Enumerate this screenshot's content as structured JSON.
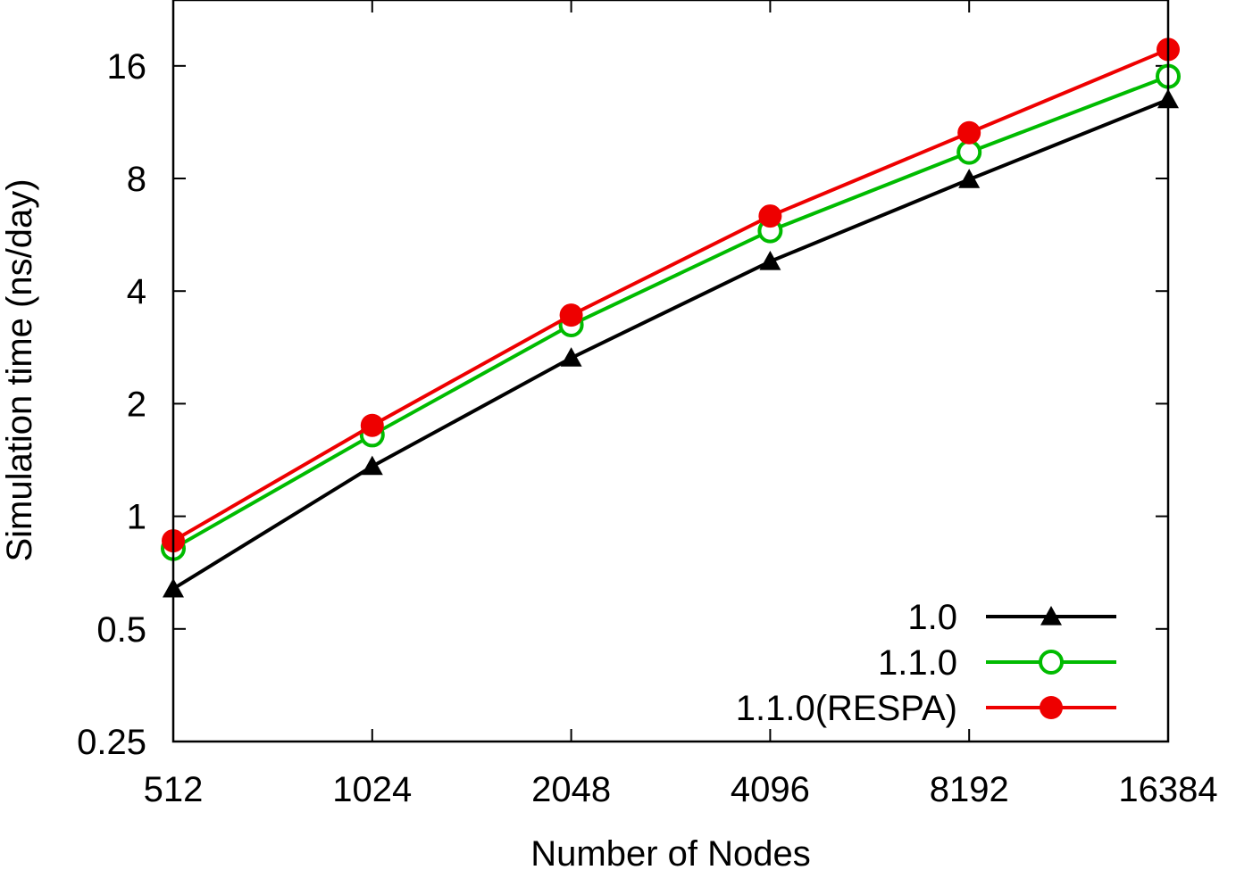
{
  "chart_data": {
    "type": "line",
    "xlabel": "Number of Nodes",
    "ylabel": "Simulation time (ns/day)",
    "xscale": "log2",
    "yscale": "log2",
    "x": [
      512,
      1024,
      2048,
      4096,
      8192,
      16384
    ],
    "x_tick_labels": [
      "512",
      "1024",
      "2048",
      "4096",
      "8192",
      "16384"
    ],
    "ylim": [
      0.25,
      24
    ],
    "y_ticks": [
      0.25,
      0.5,
      1,
      2,
      4,
      8,
      16
    ],
    "y_tick_labels": [
      "0.25",
      "0.5",
      "1",
      "2",
      "4",
      "8",
      "16"
    ],
    "grid": false,
    "legend_position": "bottom-right",
    "series": [
      {
        "name": "1.0",
        "color": "#000000",
        "marker": "triangle-filled",
        "values": [
          0.64,
          1.36,
          2.65,
          4.8,
          7.95,
          13.0
        ]
      },
      {
        "name": "1.1.0",
        "color": "#00bb00",
        "marker": "circle-open",
        "values": [
          0.82,
          1.65,
          3.25,
          5.8,
          9.4,
          15.0
        ]
      },
      {
        "name": "1.1.0(RESPA)",
        "color": "#ee0000",
        "marker": "circle-filled",
        "values": [
          0.86,
          1.75,
          3.45,
          6.35,
          10.6,
          17.7
        ]
      }
    ]
  }
}
